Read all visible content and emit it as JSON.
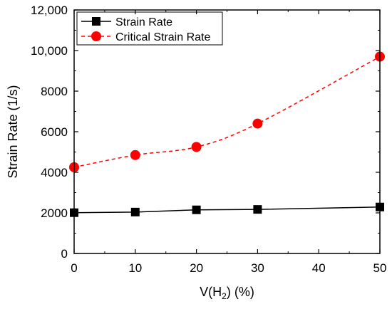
{
  "chart_data": {
    "type": "line",
    "title": "",
    "xlabel": {
      "prefix": "V(H",
      "sub": "2",
      "suffix": ") (%)"
    },
    "ylabel": "Strain Rate (1/s)",
    "xlim": [
      0,
      50
    ],
    "ylim": [
      0,
      12000
    ],
    "x_ticks": [
      0,
      10,
      20,
      30,
      40,
      50
    ],
    "y_ticks": [
      0,
      2000,
      4000,
      6000,
      8000,
      10000,
      12000
    ],
    "y_tick_labels": [
      "0",
      "2000",
      "4000",
      "6000",
      "8000",
      "10,000",
      "12,000"
    ],
    "grid": false,
    "legend_position": "top-left",
    "series": [
      {
        "name": "Strain Rate",
        "color": "#000000",
        "marker": "square",
        "line_style": "solid",
        "x": [
          0,
          10,
          20,
          30,
          50
        ],
        "values": [
          2010,
          2040,
          2150,
          2170,
          2290
        ]
      },
      {
        "name": "Critical Strain Rate",
        "color": "#ff0000",
        "marker": "circle",
        "line_style": "dashed",
        "x": [
          0,
          10,
          20,
          30,
          50
        ],
        "values": [
          4250,
          4850,
          5250,
          6400,
          9700
        ]
      }
    ]
  }
}
